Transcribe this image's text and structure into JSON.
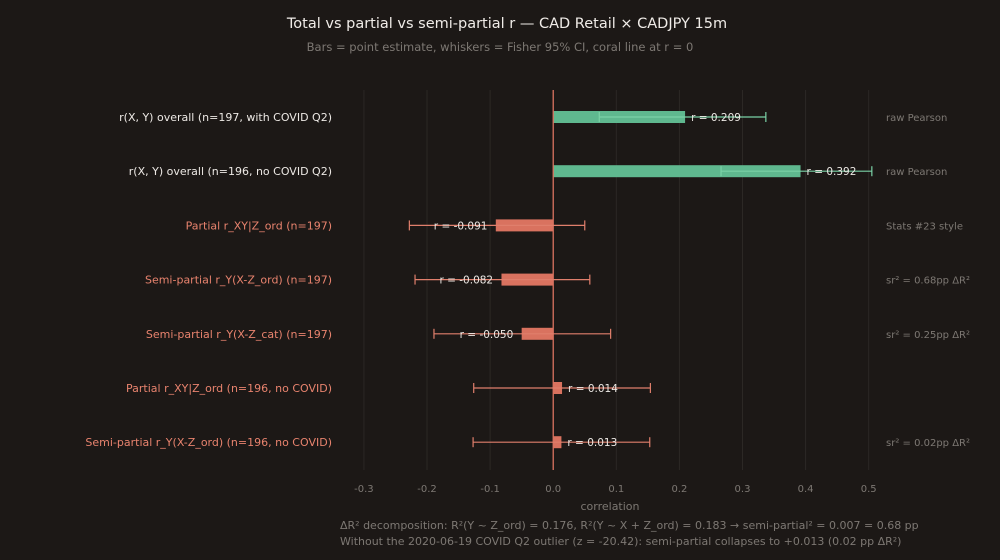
{
  "chart_data": {
    "type": "bar",
    "title": "Total vs partial vs semi-partial r — CAD Retail × CADJPY 15m",
    "subtitle": "Bars = point estimate, whiskers = Fisher 95% CI, coral line at r = 0",
    "xlabel": "correlation",
    "xlim": [
      -0.33,
      0.51
    ],
    "xticks": [
      -0.3,
      -0.2,
      -0.1,
      0.0,
      0.1,
      0.2,
      0.3,
      0.4,
      0.5
    ],
    "xtick_labels": [
      "-0.3",
      "-0.2",
      "-0.1",
      "0.0",
      "0.1",
      "0.2",
      "0.3",
      "0.4",
      "0.5"
    ],
    "grid": "vertical",
    "rows": [
      {
        "label": "r(X, Y) overall (n=197, with COVID Q2)",
        "value": 0.209,
        "ci": [
          0.073,
          0.337
        ],
        "value_label": "r = 0.209",
        "note": "raw Pearson",
        "group": "raw"
      },
      {
        "label": "r(X, Y) overall (n=196, no COVID Q2)",
        "value": 0.392,
        "ci": [
          0.266,
          0.505
        ],
        "value_label": "r = 0.392",
        "note": "raw Pearson",
        "group": "raw"
      },
      {
        "label": "Partial r_XY|Z_ord (n=197)",
        "value": -0.091,
        "ci": [
          -0.228,
          0.05
        ],
        "value_label": "r = -0.091",
        "note": "Stats #23 style",
        "group": "partial"
      },
      {
        "label": "Semi-partial r_Y(X-Z_ord) (n=197)",
        "value": -0.082,
        "ci": [
          -0.219,
          0.058
        ],
        "value_label": "r = -0.082",
        "note": "sr² = 0.68pp ΔR²",
        "group": "partial"
      },
      {
        "label": "Semi-partial r_Y(X-Z_cat) (n=197)",
        "value": -0.05,
        "ci": [
          -0.189,
          0.091
        ],
        "value_label": "r = -0.050",
        "note": "sr² = 0.25pp ΔR²",
        "group": "partial"
      },
      {
        "label": "Partial r_XY|Z_ord (n=196, no COVID)",
        "value": 0.014,
        "ci": [
          -0.126,
          0.154
        ],
        "value_label": "r = 0.014",
        "note": "",
        "group": "partial"
      },
      {
        "label": "Semi-partial r_Y(X-Z_ord) (n=196, no COVID)",
        "value": 0.013,
        "ci": [
          -0.127,
          0.153
        ],
        "value_label": "r = 0.013",
        "note": "sr² = 0.02pp ΔR²",
        "group": "partial"
      }
    ],
    "footnotes": [
      "ΔR² decomposition: R²(Y ~ Z_ord) = 0.176, R²(Y ~ X + Z_ord) = 0.183 → semi-partial² = 0.007 = 0.68 pp",
      "Without the 2020-06-19 COVID Q2 outlier (z = -20.42): semi-partial collapses to +0.013 (0.02 pp ΔR²)"
    ]
  },
  "colors": {
    "background": "#1c1816",
    "raw_bar": "#5fb88f",
    "raw_ci": "#7ad1a6",
    "partial_bar": "#d9725f",
    "partial_ci": "#e07f6c",
    "zero_line": "#d9725f",
    "grid": "#2c2825",
    "title": "#f0ece8",
    "subtitle": "#7d7873",
    "raw_label": "#ece8e4",
    "partial_label": "#e8836e",
    "note": "#7d7873",
    "tick": "#7d7873",
    "value_label": "#ece8e4"
  }
}
